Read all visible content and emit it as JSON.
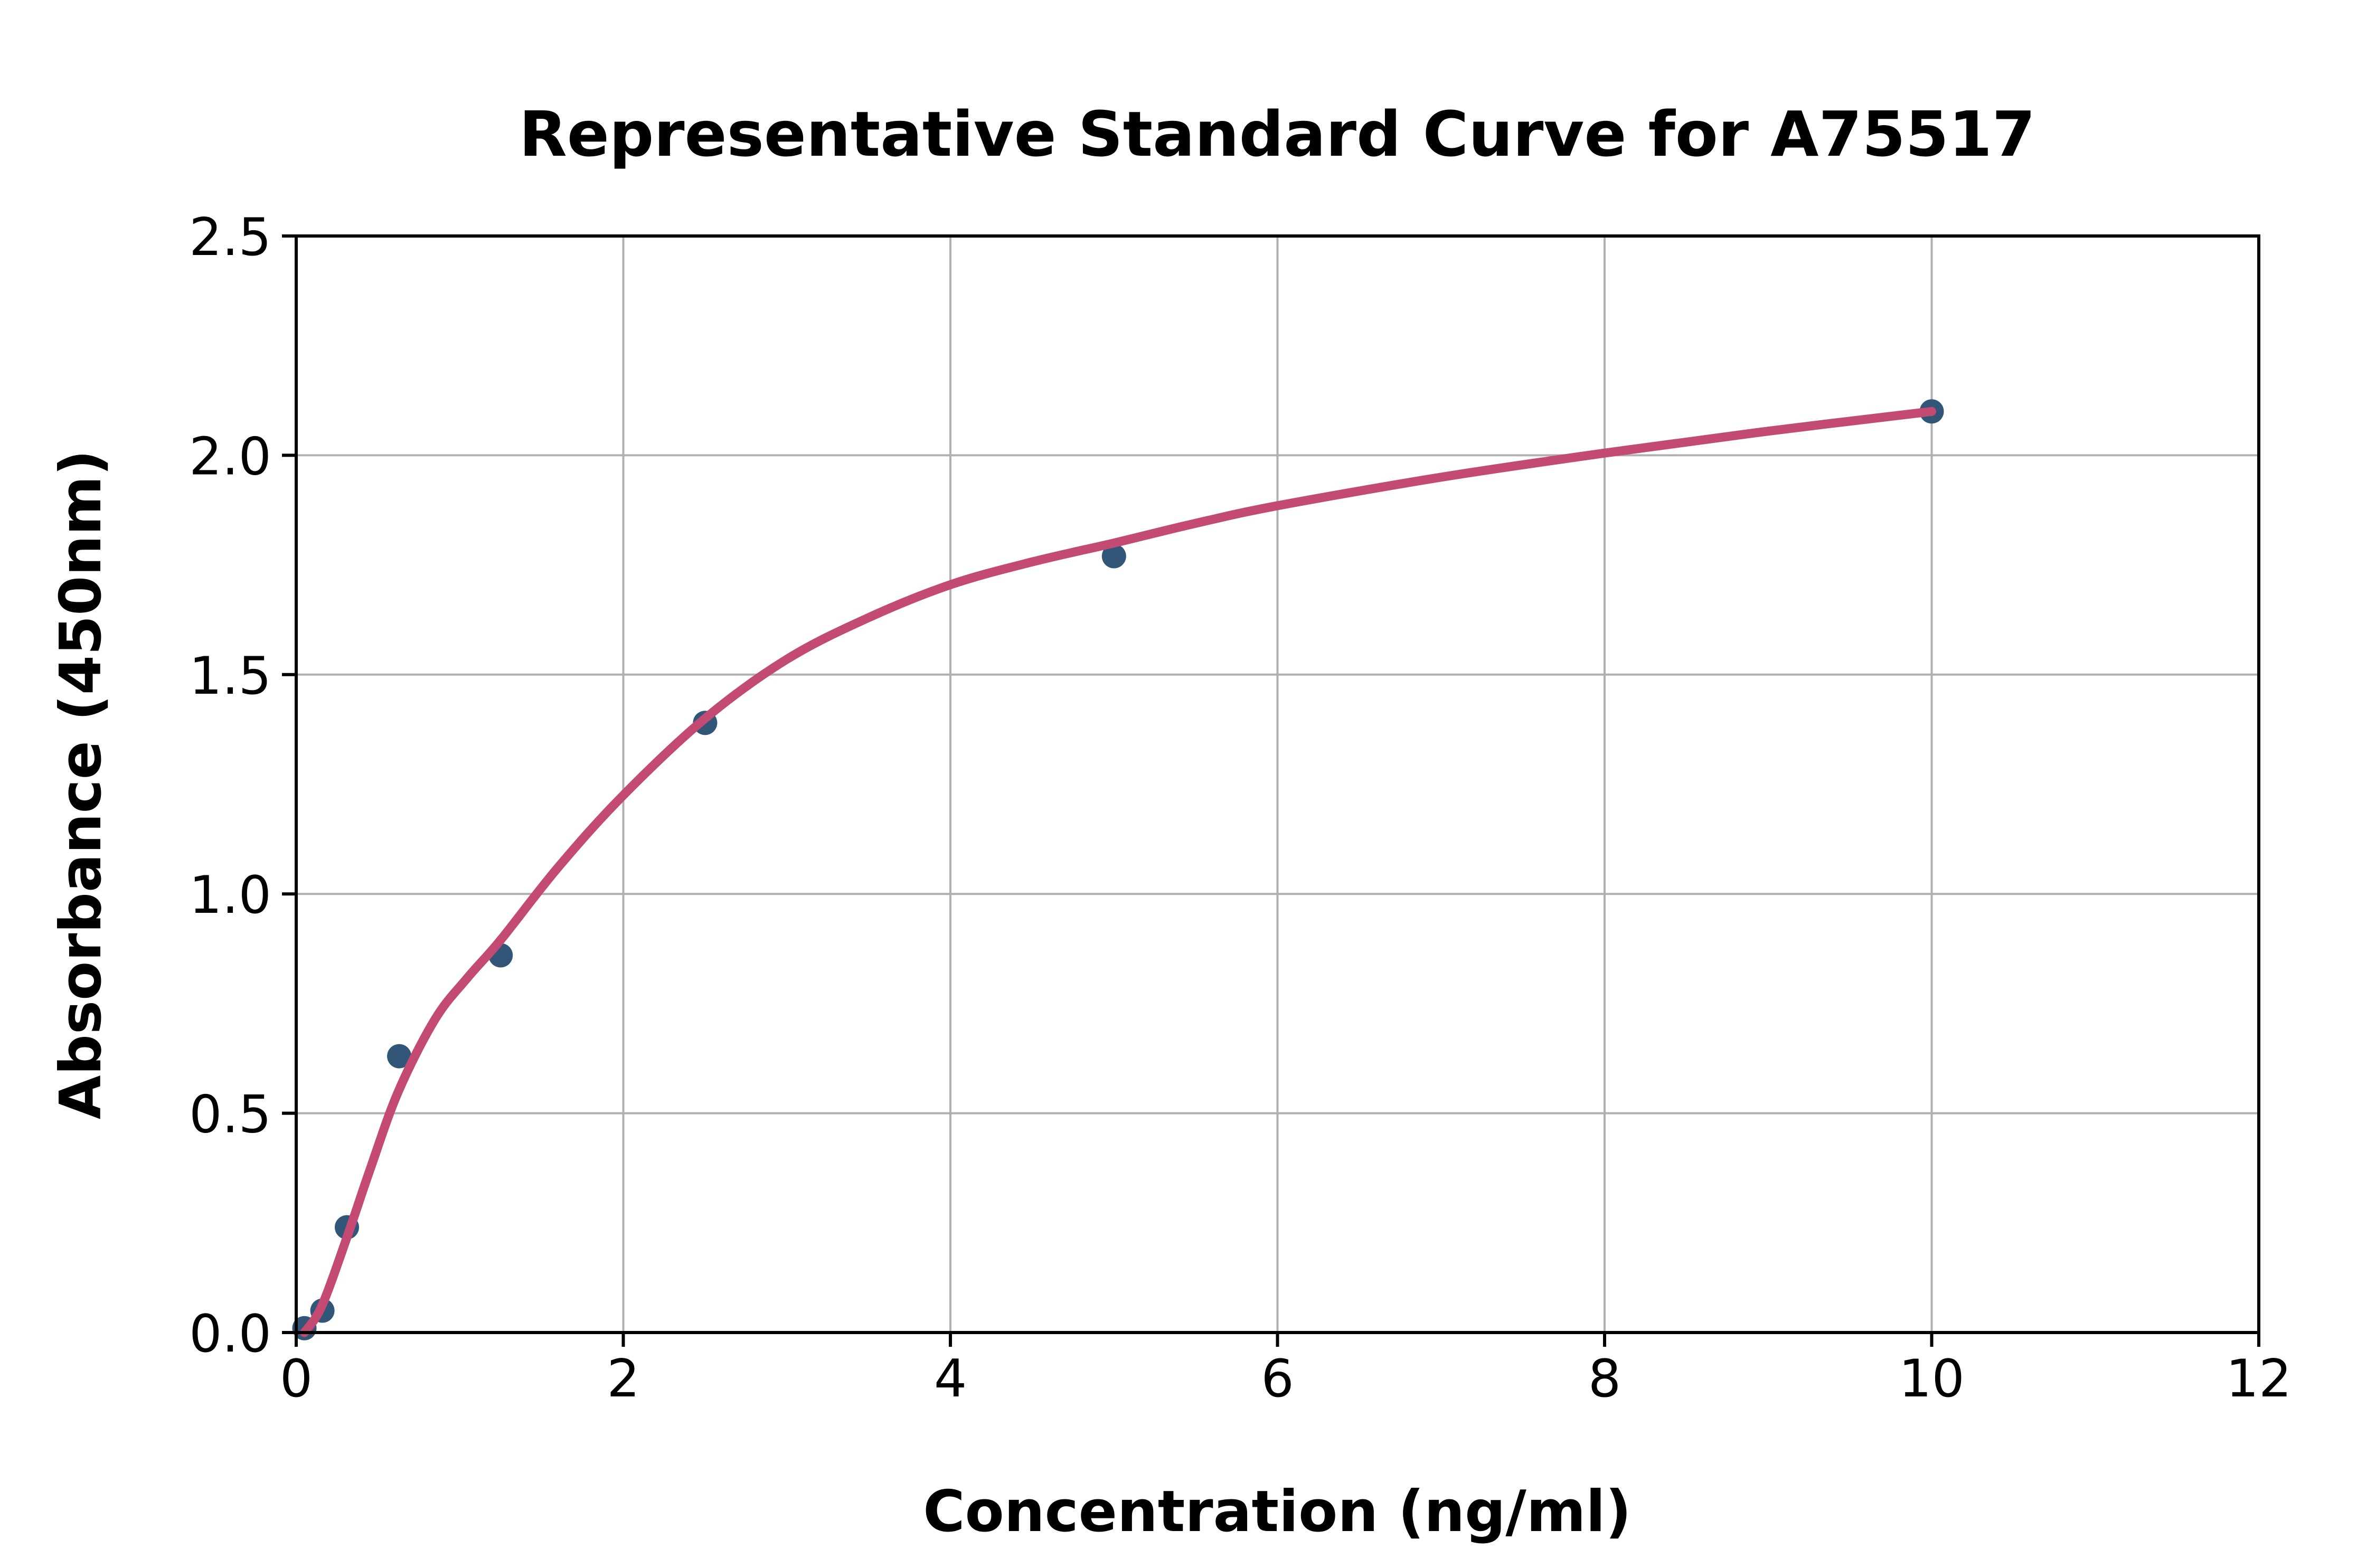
{
  "page": {
    "background_color": "#ffffff"
  },
  "chart_data": {
    "type": "scatter",
    "title": "Representative Standard Curve for A75517",
    "xlabel": "Concentration (ng/ml)",
    "ylabel": "Absorbance (450nm)",
    "xlim": [
      0,
      12
    ],
    "ylim": [
      0,
      2.5
    ],
    "x_ticks": [
      0,
      2,
      4,
      6,
      8,
      10,
      12
    ],
    "x_tick_labels": [
      "0",
      "2",
      "4",
      "6",
      "8",
      "10",
      "12"
    ],
    "y_ticks": [
      0,
      0.5,
      1.0,
      1.5,
      2.0,
      2.5
    ],
    "y_tick_labels": [
      "0.0",
      "0.5",
      "1.0",
      "1.5",
      "2.0",
      "2.5"
    ],
    "grid": "on",
    "legend_position": "none",
    "frame": "closed-box",
    "colors": {
      "points": "#315677",
      "fit_line": "#c34b73",
      "grid": "#b0b0b0",
      "axes": "#000000",
      "text": "#000000"
    },
    "series": [
      {
        "name": "standard-data-points",
        "type": "scatter",
        "color": "#315677",
        "x": [
          0.05,
          0.16,
          0.31,
          0.63,
          1.25,
          2.5,
          5.0,
          10.0
        ],
        "y": [
          0.01,
          0.05,
          0.24,
          0.63,
          0.86,
          1.39,
          1.77,
          2.1
        ]
      },
      {
        "name": "4pl-fit-curve",
        "type": "line",
        "color": "#c34b73",
        "x": [
          0.05,
          0.156,
          0.313,
          0.45,
          0.625,
          0.85,
          1.05,
          1.25,
          1.6,
          2.0,
          2.5,
          3.0,
          3.5,
          4.0,
          4.5,
          5.0,
          5.5,
          6.0,
          7.0,
          8.0,
          9.0,
          10.0
        ],
        "y": [
          0.0,
          0.06,
          0.22,
          0.37,
          0.55,
          0.715,
          0.81,
          0.895,
          1.06,
          1.225,
          1.4,
          1.535,
          1.63,
          1.705,
          1.757,
          1.8,
          1.845,
          1.885,
          1.95,
          2.005,
          2.055,
          2.1
        ]
      }
    ]
  }
}
